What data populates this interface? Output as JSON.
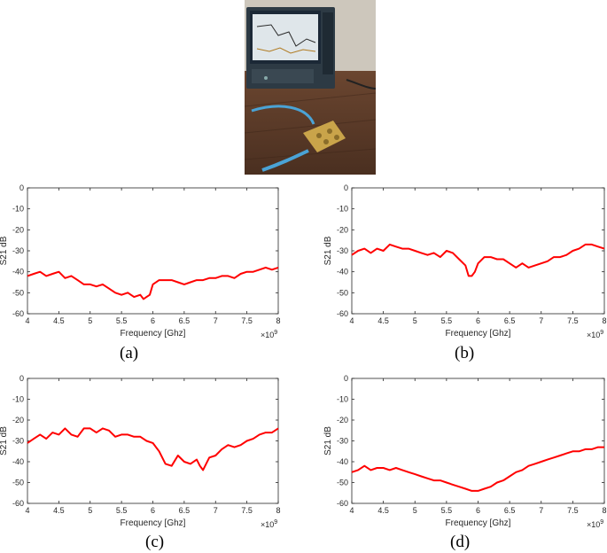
{
  "photo": {
    "colors": {
      "wall": "#c9c3b8",
      "desk": "#5a3a28",
      "screen": "#1b2836",
      "board": "#c9a44a",
      "cable": "#4aa3d6"
    }
  },
  "captions": [
    "(a)",
    "(b)",
    "(c)",
    "(d)"
  ],
  "chart_data": [
    {
      "type": "line",
      "xlabel": "Frequency [Ghz]",
      "ylabel": "S21 dB",
      "multiplier": "× 10^9",
      "xlim": [
        4,
        8
      ],
      "ylim": [
        -60,
        0
      ],
      "xticks": [
        "4",
        "4.5",
        "5",
        "5.5",
        "6",
        "6.5",
        "7",
        "7.5",
        "8"
      ],
      "yticks": [
        "0",
        "-10",
        "-20",
        "-30",
        "-40",
        "-50",
        "-60"
      ],
      "color": "#ff0000",
      "x": [
        4.0,
        4.1,
        4.2,
        4.3,
        4.4,
        4.5,
        4.6,
        4.7,
        4.8,
        4.9,
        5.0,
        5.1,
        5.2,
        5.3,
        5.4,
        5.5,
        5.6,
        5.7,
        5.8,
        5.85,
        5.9,
        5.95,
        6.0,
        6.1,
        6.2,
        6.3,
        6.4,
        6.5,
        6.6,
        6.7,
        6.8,
        6.9,
        7.0,
        7.1,
        7.2,
        7.3,
        7.4,
        7.5,
        7.6,
        7.7,
        7.8,
        7.9,
        8.0
      ],
      "values": [
        -42,
        -41,
        -40,
        -42,
        -41,
        -40,
        -43,
        -42,
        -44,
        -46,
        -46,
        -47,
        -46,
        -48,
        -50,
        -51,
        -50,
        -52,
        -51,
        -53,
        -52,
        -51,
        -46,
        -44,
        -44,
        -44,
        -45,
        -46,
        -45,
        -44,
        -44,
        -43,
        -43,
        -42,
        -42,
        -43,
        -41,
        -40,
        -40,
        -39,
        -38,
        -39,
        -38
      ]
    },
    {
      "type": "line",
      "xlabel": "Frequency [Ghz]",
      "ylabel": "S21 dB",
      "multiplier": "× 10^9",
      "xlim": [
        4,
        8
      ],
      "ylim": [
        -60,
        0
      ],
      "xticks": [
        "4",
        "4.5",
        "5",
        "5.5",
        "6",
        "6.5",
        "7",
        "7.5",
        "8"
      ],
      "yticks": [
        "0",
        "-10",
        "-20",
        "-30",
        "-40",
        "-50",
        "-60"
      ],
      "color": "#ff0000",
      "x": [
        4.0,
        4.1,
        4.2,
        4.3,
        4.4,
        4.5,
        4.6,
        4.7,
        4.8,
        4.9,
        5.0,
        5.1,
        5.2,
        5.3,
        5.4,
        5.5,
        5.6,
        5.7,
        5.8,
        5.85,
        5.9,
        5.95,
        6.0,
        6.1,
        6.2,
        6.3,
        6.4,
        6.5,
        6.6,
        6.7,
        6.8,
        6.9,
        7.0,
        7.1,
        7.2,
        7.3,
        7.4,
        7.5,
        7.6,
        7.7,
        7.8,
        7.9,
        8.0
      ],
      "values": [
        -32,
        -30,
        -29,
        -31,
        -29,
        -30,
        -27,
        -28,
        -29,
        -29,
        -30,
        -31,
        -32,
        -31,
        -33,
        -30,
        -31,
        -34,
        -37,
        -42,
        -42,
        -40,
        -36,
        -33,
        -33,
        -34,
        -34,
        -36,
        -38,
        -36,
        -38,
        -37,
        -36,
        -35,
        -33,
        -33,
        -32,
        -30,
        -29,
        -27,
        -27,
        -28,
        -29
      ]
    },
    {
      "type": "line",
      "xlabel": "Frequency [Ghz]",
      "ylabel": "S21 dB",
      "multiplier": "× 10^9",
      "xlim": [
        4,
        8
      ],
      "ylim": [
        -60,
        0
      ],
      "xticks": [
        "4",
        "4.5",
        "5",
        "5.5",
        "6",
        "6.5",
        "7",
        "7.5",
        "8"
      ],
      "yticks": [
        "0",
        "-10",
        "-20",
        "-30",
        "-40",
        "-50",
        "-60"
      ],
      "color": "#ff0000",
      "x": [
        4.0,
        4.1,
        4.2,
        4.3,
        4.4,
        4.5,
        4.6,
        4.7,
        4.8,
        4.9,
        5.0,
        5.1,
        5.2,
        5.3,
        5.4,
        5.5,
        5.6,
        5.7,
        5.8,
        5.9,
        6.0,
        6.1,
        6.2,
        6.3,
        6.4,
        6.5,
        6.6,
        6.7,
        6.75,
        6.8,
        6.9,
        7.0,
        7.1,
        7.2,
        7.3,
        7.4,
        7.5,
        7.6,
        7.7,
        7.8,
        7.9,
        8.0
      ],
      "values": [
        -31,
        -29,
        -27,
        -29,
        -26,
        -27,
        -24,
        -27,
        -28,
        -24,
        -24,
        -26,
        -24,
        -25,
        -28,
        -27,
        -27,
        -28,
        -28,
        -30,
        -31,
        -35,
        -41,
        -42,
        -37,
        -40,
        -41,
        -39,
        -42,
        -44,
        -38,
        -37,
        -34,
        -32,
        -33,
        -32,
        -30,
        -29,
        -27,
        -26,
        -26,
        -24
      ]
    },
    {
      "type": "line",
      "xlabel": "Frequency [Ghz]",
      "ylabel": "S21 dB",
      "multiplier": "× 10^9",
      "xlim": [
        4,
        8
      ],
      "ylim": [
        -60,
        0
      ],
      "xticks": [
        "4",
        "4.5",
        "5",
        "5.5",
        "6",
        "6.5",
        "7",
        "7.5",
        "8"
      ],
      "yticks": [
        "0",
        "-10",
        "-20",
        "-30",
        "-40",
        "-50",
        "-60"
      ],
      "color": "#ff0000",
      "x": [
        4.0,
        4.1,
        4.2,
        4.3,
        4.4,
        4.5,
        4.6,
        4.7,
        4.8,
        4.9,
        5.0,
        5.1,
        5.2,
        5.3,
        5.4,
        5.5,
        5.6,
        5.7,
        5.8,
        5.9,
        6.0,
        6.1,
        6.2,
        6.3,
        6.4,
        6.5,
        6.6,
        6.7,
        6.8,
        6.9,
        7.0,
        7.1,
        7.2,
        7.3,
        7.4,
        7.5,
        7.6,
        7.7,
        7.8,
        7.9,
        8.0
      ],
      "values": [
        -45,
        -44,
        -42,
        -44,
        -43,
        -43,
        -44,
        -43,
        -44,
        -45,
        -46,
        -47,
        -48,
        -49,
        -49,
        -50,
        -51,
        -52,
        -53,
        -54,
        -54,
        -53,
        -52,
        -50,
        -49,
        -47,
        -45,
        -44,
        -42,
        -41,
        -40,
        -39,
        -38,
        -37,
        -36,
        -35,
        -35,
        -34,
        -34,
        -33,
        -33
      ]
    }
  ]
}
